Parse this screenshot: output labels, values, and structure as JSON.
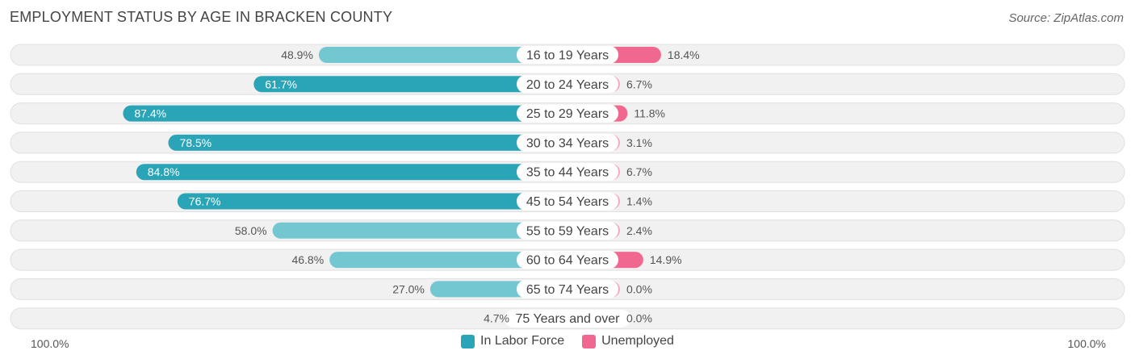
{
  "title": "EMPLOYMENT STATUS BY AGE IN BRACKEN COUNTY",
  "source": "Source: ZipAtlas.com",
  "axis_left_label": "100.0%",
  "axis_right_label": "100.0%",
  "legend": {
    "labor": "In Labor Force",
    "unemployed": "Unemployed"
  },
  "colors": {
    "labor_strong": "#2aa5b8",
    "labor_light": "#72c7d1",
    "unemployed_strong": "#f06890",
    "unemployed_light": "#f7a8bf",
    "row_bg": "#f1f1f1",
    "row_border": "#e0e0e0"
  },
  "chart_data": {
    "type": "bar",
    "orientation": "diverging-horizontal",
    "title": "EMPLOYMENT STATUS BY AGE IN BRACKEN COUNTY",
    "xlim": [
      -100,
      100
    ],
    "categories": [
      "16 to 19 Years",
      "20 to 24 Years",
      "25 to 29 Years",
      "30 to 34 Years",
      "35 to 44 Years",
      "45 to 54 Years",
      "55 to 59 Years",
      "60 to 64 Years",
      "65 to 74 Years",
      "75 Years and over"
    ],
    "series": [
      {
        "name": "In Labor Force",
        "side": "left",
        "values": [
          48.9,
          61.7,
          87.4,
          78.5,
          84.8,
          76.7,
          58.0,
          46.8,
          27.0,
          4.7
        ],
        "labels": [
          "48.9%",
          "61.7%",
          "87.4%",
          "78.5%",
          "84.8%",
          "76.7%",
          "58.0%",
          "46.8%",
          "27.0%",
          "4.7%"
        ]
      },
      {
        "name": "Unemployed",
        "side": "right",
        "values": [
          18.4,
          6.7,
          11.8,
          3.1,
          6.7,
          1.4,
          2.4,
          14.9,
          0.0,
          0.0
        ],
        "labels": [
          "18.4%",
          "6.7%",
          "11.8%",
          "3.1%",
          "6.7%",
          "1.4%",
          "2.4%",
          "14.9%",
          "0.0%",
          "0.0%"
        ]
      }
    ]
  }
}
